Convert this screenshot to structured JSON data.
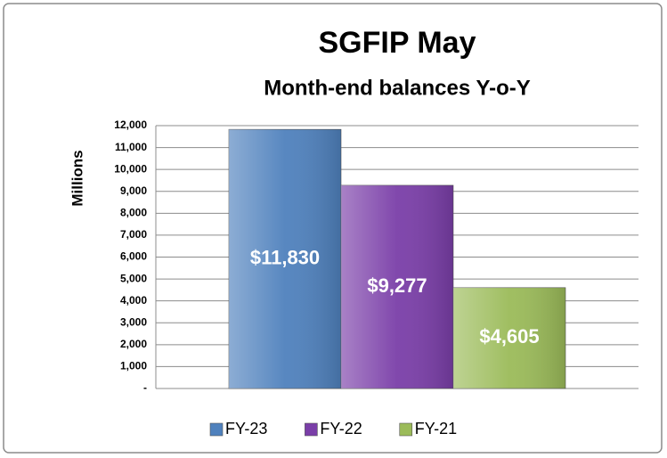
{
  "chart_data": {
    "type": "bar",
    "title": "SGFIP May",
    "subtitle": "Month-end balances Y-o-Y",
    "y_label": "Millions",
    "categories": [
      null
    ],
    "series": [
      {
        "name": "FY-23",
        "color": "#4f81bd",
        "values": [
          11830
        ],
        "value_labels": [
          "$11,830"
        ]
      },
      {
        "name": "FY-22",
        "color": "#7a3ea8",
        "values": [
          9277
        ],
        "value_labels": [
          "$9,277"
        ]
      },
      {
        "name": "FY-21",
        "color": "#9bbb59",
        "values": [
          4605
        ],
        "value_labels": [
          "$4,605"
        ]
      }
    ],
    "ylim": [
      0,
      12000
    ],
    "yticks": [
      {
        "value": 0,
        "label": "-"
      },
      {
        "value": 1000,
        "label": "1,000"
      },
      {
        "value": 2000,
        "label": "2,000"
      },
      {
        "value": 3000,
        "label": "3,000"
      },
      {
        "value": 4000,
        "label": "4,000"
      },
      {
        "value": 5000,
        "label": "5,000"
      },
      {
        "value": 6000,
        "label": "6,000"
      },
      {
        "value": 7000,
        "label": "7,000"
      },
      {
        "value": 8000,
        "label": "8,000"
      },
      {
        "value": 9000,
        "label": "9,000"
      },
      {
        "value": 10000,
        "label": "10,000"
      },
      {
        "value": 11000,
        "label": "11,000"
      },
      {
        "value": 12000,
        "label": "12,000"
      }
    ],
    "grid": true,
    "legend": "bottom"
  }
}
